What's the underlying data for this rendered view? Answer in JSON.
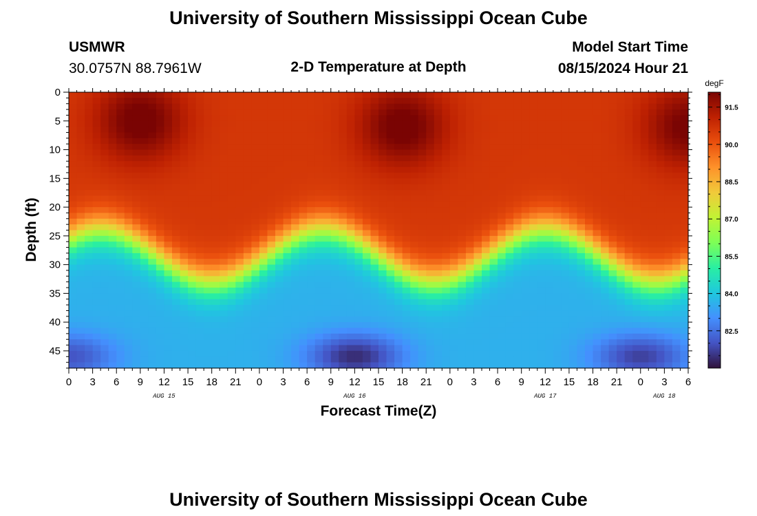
{
  "header": {
    "title": "University of Southern Mississippi Ocean Cube",
    "station": "USMWR",
    "coords": "30.0757N  88.7961W",
    "subtitle": "2-D Temperature at Depth",
    "model_label": "Model Start Time",
    "model_time": "08/15/2024 Hour 21"
  },
  "footer": {
    "title": "University of Southern Mississippi Ocean Cube"
  },
  "chart_data": {
    "type": "heatmap",
    "title": "2-D Temperature at Depth",
    "xlabel": "Forecast Time(Z)",
    "ylabel": "Depth (ft)",
    "x_ticks": [
      "0",
      "3",
      "6",
      "9",
      "12",
      "15",
      "18",
      "21",
      "0",
      "3",
      "6",
      "9",
      "12",
      "15",
      "18",
      "21",
      "0",
      "3",
      "6",
      "9",
      "12",
      "15",
      "18",
      "21",
      "0",
      "3",
      "6"
    ],
    "x_range_hours": [
      0,
      78
    ],
    "date_labels": [
      {
        "label": "AUG 15",
        "hour": 12
      },
      {
        "label": "AUG 16",
        "hour": 36
      },
      {
        "label": "AUG 17",
        "hour": 60
      },
      {
        "label": "AUG 18",
        "hour": 75
      }
    ],
    "y_ticks": [
      "0",
      "5",
      "10",
      "15",
      "20",
      "25",
      "30",
      "35",
      "40",
      "45"
    ],
    "y_range_ft": [
      0,
      48
    ],
    "colorbar": {
      "unit": "degF",
      "range": [
        81.0,
        92.1
      ],
      "ticks": [
        "91.5",
        "90.0",
        "88.5",
        "87.0",
        "85.5",
        "84.0",
        "82.5"
      ],
      "colors": [
        "#30123b",
        "#4454c4",
        "#4490fe",
        "#1fc8de",
        "#29efa2",
        "#7dff56",
        "#c1f334",
        "#f1ca3a",
        "#fe922a",
        "#ea4f0d",
        "#be2102",
        "#7a0403"
      ]
    },
    "model": {
      "surface_temp": 90.6,
      "thermocline_depth_min_ft": 24,
      "thermocline_depth_max_ft": 33,
      "deep_temp": 83.6,
      "warm_cores": [
        {
          "hour": 9,
          "depth": 5,
          "amp": 1.7
        },
        {
          "hour": 42,
          "depth": 6,
          "amp": 1.7
        },
        {
          "hour": 78,
          "depth": 6,
          "amp": 1.6
        }
      ],
      "cold_cores": [
        {
          "hour": 0,
          "depth": 46,
          "amp": 1.6
        },
        {
          "hour": 36,
          "depth": 46,
          "amp": 2.2
        },
        {
          "hour": 72,
          "depth": 46,
          "amp": 1.9
        }
      ]
    }
  }
}
